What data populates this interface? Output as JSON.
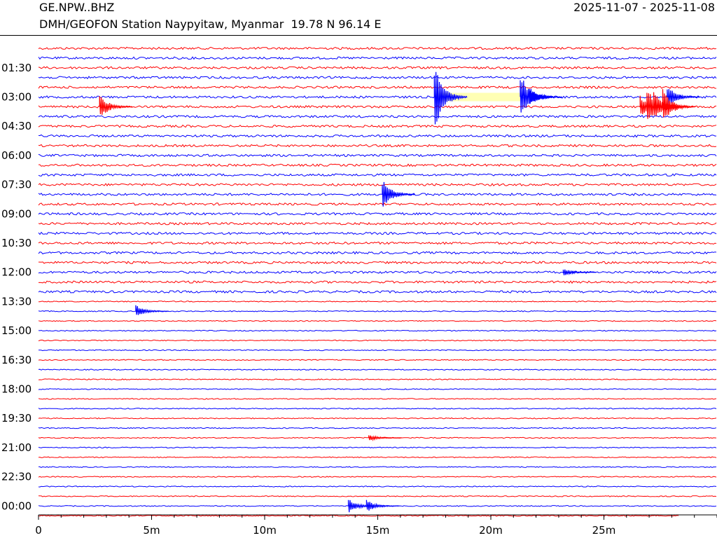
{
  "header": {
    "station_code": "GE.NPW..BHZ",
    "station_desc": "DMH/GEOFON Station Naypyitaw, Myanmar  19.78 N 96.14 E",
    "date_range": "2025-11-07 - 2025-11-08"
  },
  "chart_data": {
    "type": "line",
    "title": "",
    "xlabel": "",
    "ylabel": "",
    "xlim": [
      0,
      30
    ],
    "x_unit": "minutes",
    "x_ticks": [
      0,
      5,
      10,
      15,
      20,
      25
    ],
    "x_tick_labels": [
      "0",
      "5m",
      "10m",
      "15m",
      "20m",
      "25m"
    ],
    "row_minutes": 30,
    "row_count": 49,
    "row_time_labels": [
      "01:30",
      "03:00",
      "04:30",
      "06:00",
      "07:30",
      "09:00",
      "10:30",
      "12:00",
      "13:30",
      "15:00",
      "16:30",
      "18:00",
      "19:30",
      "21:00",
      "22:30",
      "00:00"
    ],
    "trace_colors": [
      "#ff0000",
      "#0000ff"
    ],
    "data_gap": {
      "time": "03:00",
      "start_min": 17.6,
      "end_min": 21.3,
      "color": "#ffffb4"
    },
    "last_row_end_min": 28.3,
    "events": [
      {
        "time": "03:00",
        "row_offset": 0,
        "minute": 17.5,
        "amplitude": 2.8
      },
      {
        "time": "03:00",
        "row_offset": 0,
        "minute": 21.3,
        "amplitude": 2.0
      },
      {
        "time": "03:00",
        "row_offset": 0,
        "minute": 21.7,
        "amplitude": 0.8
      },
      {
        "time": "03:00",
        "row_offset": 0,
        "minute": 27.8,
        "amplitude": 0.9
      },
      {
        "time": "03:00",
        "row_offset": 1,
        "minute": 2.7,
        "amplitude": 1.0
      },
      {
        "time": "03:00",
        "row_offset": 1,
        "minute": 26.6,
        "amplitude": 0.9
      },
      {
        "time": "03:00",
        "row_offset": 1,
        "minute": 26.9,
        "amplitude": 1.5
      },
      {
        "time": "03:00",
        "row_offset": 1,
        "minute": 27.2,
        "amplitude": 1.2
      },
      {
        "time": "03:00",
        "row_offset": 1,
        "minute": 27.6,
        "amplitude": 1.4
      },
      {
        "time": "07:30",
        "row_offset": 1,
        "minute": 15.2,
        "amplitude": 1.2
      },
      {
        "time": "12:00",
        "row_offset": 0,
        "minute": 23.2,
        "amplitude": 0.3
      },
      {
        "time": "13:30",
        "row_offset": 1,
        "minute": 4.3,
        "amplitude": 0.5
      },
      {
        "time": "21:00",
        "row_offset": -1,
        "minute": 14.6,
        "amplitude": 0.25
      },
      {
        "time": "00:00",
        "row_offset": 0,
        "minute": 13.7,
        "amplitude": 0.6
      },
      {
        "time": "00:00",
        "row_offset": 0,
        "minute": 14.5,
        "amplitude": 0.5
      }
    ],
    "grid": false,
    "legend": "none"
  }
}
